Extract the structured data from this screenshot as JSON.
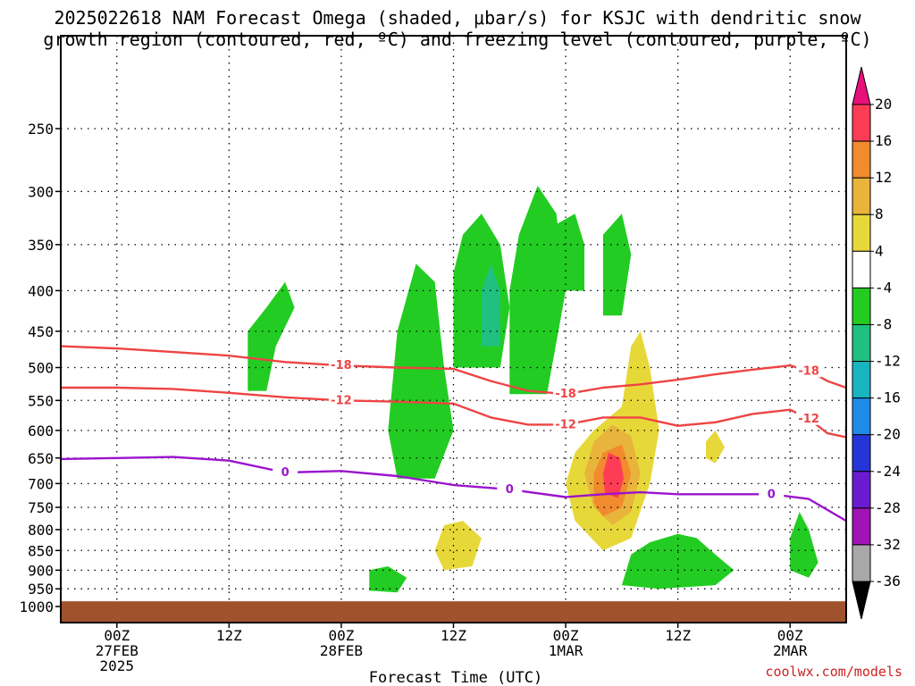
{
  "chart_data": {
    "type": "heatmap",
    "title": "2025022618 NAM Forecast Omega (shaded, μbar/s) for KSJC with dendritic snow\ngrowth region (contoured, red, ºC) and freezing level (contoured, purple, ºC)",
    "xlabel": "Forecast Time (UTC)",
    "ylabel": "",
    "credit": "coolwx.com/models",
    "y_axis": {
      "scale": "pressure (inverted)",
      "ticks": [
        250,
        300,
        350,
        400,
        450,
        500,
        550,
        600,
        650,
        700,
        750,
        800,
        850,
        900,
        950,
        1000
      ],
      "range": [
        1000,
        200
      ]
    },
    "x_axis": {
      "range_hours": [
        0,
        84
      ],
      "ticks": [
        {
          "hour": 6,
          "label": "00Z",
          "sub": "27FEB",
          "sub2": "2025"
        },
        {
          "hour": 18,
          "label": "12Z",
          "sub": "",
          "sub2": ""
        },
        {
          "hour": 30,
          "label": "00Z",
          "sub": "28FEB",
          "sub2": ""
        },
        {
          "hour": 42,
          "label": "12Z",
          "sub": "",
          "sub2": ""
        },
        {
          "hour": 54,
          "label": "00Z",
          "sub": "1MAR",
          "sub2": ""
        },
        {
          "hour": 66,
          "label": "12Z",
          "sub": "",
          "sub2": ""
        },
        {
          "hour": 78,
          "label": "00Z",
          "sub": "2MAR",
          "sub2": ""
        }
      ]
    },
    "colorbar": {
      "labels": [
        "20",
        "16",
        "12",
        "8",
        "4",
        "-4",
        "-8",
        "-12",
        "-16",
        "-20",
        "-24",
        "-28",
        "-32",
        "-36"
      ],
      "colors": [
        "#ff3c55",
        "#f28a2e",
        "#e8b43b",
        "#e7d83a",
        "#ffffff",
        "#22cc22",
        "#20c080",
        "#18b4c0",
        "#1e8ce6",
        "#2436d8",
        "#6a1bd0",
        "#a014b4",
        "#a8a8a8"
      ],
      "top_color": "#e8107a",
      "bottom_color": "#000000"
    },
    "contours": [
      {
        "name": "-18",
        "color": "#ee4444",
        "label": "-18",
        "points": [
          [
            0,
            470
          ],
          [
            6,
            473
          ],
          [
            12,
            478
          ],
          [
            18,
            483
          ],
          [
            24,
            492
          ],
          [
            30,
            497
          ],
          [
            36,
            500
          ],
          [
            42,
            502
          ],
          [
            46,
            520
          ],
          [
            50,
            535
          ],
          [
            54,
            540
          ],
          [
            58,
            530
          ],
          [
            62,
            525
          ],
          [
            66,
            518
          ],
          [
            70,
            510
          ],
          [
            74,
            503
          ],
          [
            78,
            497
          ],
          [
            80,
            505
          ],
          [
            82,
            520
          ],
          [
            84,
            530
          ]
        ]
      },
      {
        "name": "-12",
        "color": "#ee4444",
        "label": "-12",
        "points": [
          [
            0,
            530
          ],
          [
            6,
            530
          ],
          [
            12,
            532
          ],
          [
            18,
            538
          ],
          [
            24,
            545
          ],
          [
            30,
            550
          ],
          [
            36,
            552
          ],
          [
            42,
            555
          ],
          [
            46,
            578
          ],
          [
            50,
            590
          ],
          [
            54,
            590
          ],
          [
            58,
            578
          ],
          [
            62,
            578
          ],
          [
            66,
            592
          ],
          [
            70,
            586
          ],
          [
            74,
            572
          ],
          [
            78,
            565
          ],
          [
            80,
            580
          ],
          [
            82,
            605
          ],
          [
            84,
            612
          ]
        ]
      },
      {
        "name": "0",
        "color": "#9a14cc",
        "label": "0",
        "points": [
          [
            0,
            652
          ],
          [
            6,
            650
          ],
          [
            12,
            648
          ],
          [
            18,
            655
          ],
          [
            24,
            678
          ],
          [
            30,
            675
          ],
          [
            36,
            685
          ],
          [
            42,
            703
          ],
          [
            48,
            712
          ],
          [
            54,
            728
          ],
          [
            58,
            722
          ],
          [
            62,
            718
          ],
          [
            66,
            722
          ],
          [
            70,
            722
          ],
          [
            76,
            722
          ],
          [
            80,
            732
          ],
          [
            84,
            780
          ]
        ]
      }
    ],
    "shaded_regions": [
      {
        "name": "green-band-early",
        "value": -6,
        "color": "#22cc22",
        "points": [
          [
            20,
            535
          ],
          [
            20,
            450
          ],
          [
            22,
            420
          ],
          [
            24,
            390
          ],
          [
            25,
            420
          ],
          [
            23,
            470
          ],
          [
            22,
            535
          ]
        ]
      },
      {
        "name": "green-column-main",
        "value": -6,
        "color": "#22cc22",
        "points": [
          [
            36,
            690
          ],
          [
            35,
            600
          ],
          [
            36,
            450
          ],
          [
            38,
            370
          ],
          [
            40,
            390
          ],
          [
            41,
            500
          ],
          [
            42,
            600
          ],
          [
            40,
            690
          ]
        ]
      },
      {
        "name": "green-tower-a",
        "value": -6,
        "color": "#22cc22",
        "points": [
          [
            42,
            500
          ],
          [
            42,
            380
          ],
          [
            43,
            340
          ],
          [
            45,
            320
          ],
          [
            47,
            350
          ],
          [
            48,
            420
          ],
          [
            47,
            500
          ]
        ]
      },
      {
        "name": "green-tower-b",
        "value": -6,
        "color": "#22cc22",
        "points": [
          [
            48,
            540
          ],
          [
            48,
            400
          ],
          [
            49,
            340
          ],
          [
            51,
            295
          ],
          [
            53,
            320
          ],
          [
            54,
            400
          ],
          [
            52,
            540
          ]
        ]
      },
      {
        "name": "green-tower-c",
        "value": -6,
        "color": "#22cc22",
        "points": [
          [
            53,
            400
          ],
          [
            53,
            330
          ],
          [
            55,
            320
          ],
          [
            56,
            350
          ],
          [
            56,
            400
          ]
        ]
      },
      {
        "name": "green-tower-d",
        "value": -6,
        "color": "#22cc22",
        "points": [
          [
            58,
            430
          ],
          [
            58,
            340
          ],
          [
            60,
            320
          ],
          [
            61,
            360
          ],
          [
            60,
            430
          ]
        ]
      },
      {
        "name": "green-lower-cluster",
        "value": -6,
        "color": "#22cc22",
        "points": [
          [
            60,
            940
          ],
          [
            61,
            860
          ],
          [
            63,
            830
          ],
          [
            66,
            810
          ],
          [
            68,
            820
          ],
          [
            70,
            860
          ],
          [
            72,
            900
          ],
          [
            70,
            940
          ],
          [
            64,
            950
          ]
        ]
      },
      {
        "name": "green-small-low",
        "value": -6,
        "color": "#22cc22",
        "points": [
          [
            33,
            955
          ],
          [
            33,
            900
          ],
          [
            35,
            890
          ],
          [
            37,
            920
          ],
          [
            36,
            960
          ]
        ]
      },
      {
        "name": "green-right",
        "value": -6,
        "color": "#22cc22",
        "points": [
          [
            78,
            900
          ],
          [
            78,
            820
          ],
          [
            79,
            760
          ],
          [
            80,
            800
          ],
          [
            81,
            880
          ],
          [
            80,
            920
          ]
        ]
      },
      {
        "name": "teal-core",
        "value": -10,
        "color": "#20c080",
        "points": [
          [
            45,
            470
          ],
          [
            45,
            400
          ],
          [
            46,
            370
          ],
          [
            47,
            400
          ],
          [
            47,
            470
          ]
        ]
      },
      {
        "name": "yellow-main",
        "value": 6,
        "color": "#e7d83a",
        "points": [
          [
            55,
            780
          ],
          [
            54,
            700
          ],
          [
            55,
            640
          ],
          [
            57,
            600
          ],
          [
            60,
            560
          ],
          [
            61,
            470
          ],
          [
            62,
            450
          ],
          [
            63,
            500
          ],
          [
            64,
            600
          ],
          [
            63,
            700
          ],
          [
            61,
            820
          ],
          [
            58,
            850
          ]
        ]
      },
      {
        "name": "yellow-low-left",
        "value": 6,
        "color": "#e7d83a",
        "points": [
          [
            41,
            900
          ],
          [
            40,
            850
          ],
          [
            41,
            790
          ],
          [
            43,
            780
          ],
          [
            45,
            820
          ],
          [
            44,
            890
          ]
        ]
      },
      {
        "name": "yellow-right-blob",
        "value": 6,
        "color": "#e7d83a",
        "points": [
          [
            69,
            650
          ],
          [
            69,
            620
          ],
          [
            70,
            600
          ],
          [
            71,
            630
          ],
          [
            70,
            660
          ]
        ]
      },
      {
        "name": "gold-core",
        "value": 10,
        "color": "#e8b43b",
        "points": [
          [
            57,
            750
          ],
          [
            56,
            680
          ],
          [
            57,
            620
          ],
          [
            59,
            590
          ],
          [
            61,
            610
          ],
          [
            62,
            680
          ],
          [
            61,
            760
          ],
          [
            59,
            790
          ]
        ]
      },
      {
        "name": "orange-core",
        "value": 14,
        "color": "#f28a2e",
        "points": [
          [
            57,
            740
          ],
          [
            57,
            680
          ],
          [
            58,
            640
          ],
          [
            60,
            625
          ],
          [
            61,
            680
          ],
          [
            60,
            750
          ],
          [
            58,
            770
          ]
        ]
      },
      {
        "name": "red-core",
        "value": 18,
        "color": "#ff3c55",
        "points": [
          [
            58.2,
            720
          ],
          [
            58,
            680
          ],
          [
            58.6,
            640
          ],
          [
            59.8,
            650
          ],
          [
            60.2,
            690
          ],
          [
            59.6,
            730
          ]
        ]
      }
    ],
    "surface_band": {
      "from_pressure": 985,
      "to_pressure": 1015,
      "color": "#a0522d"
    }
  }
}
